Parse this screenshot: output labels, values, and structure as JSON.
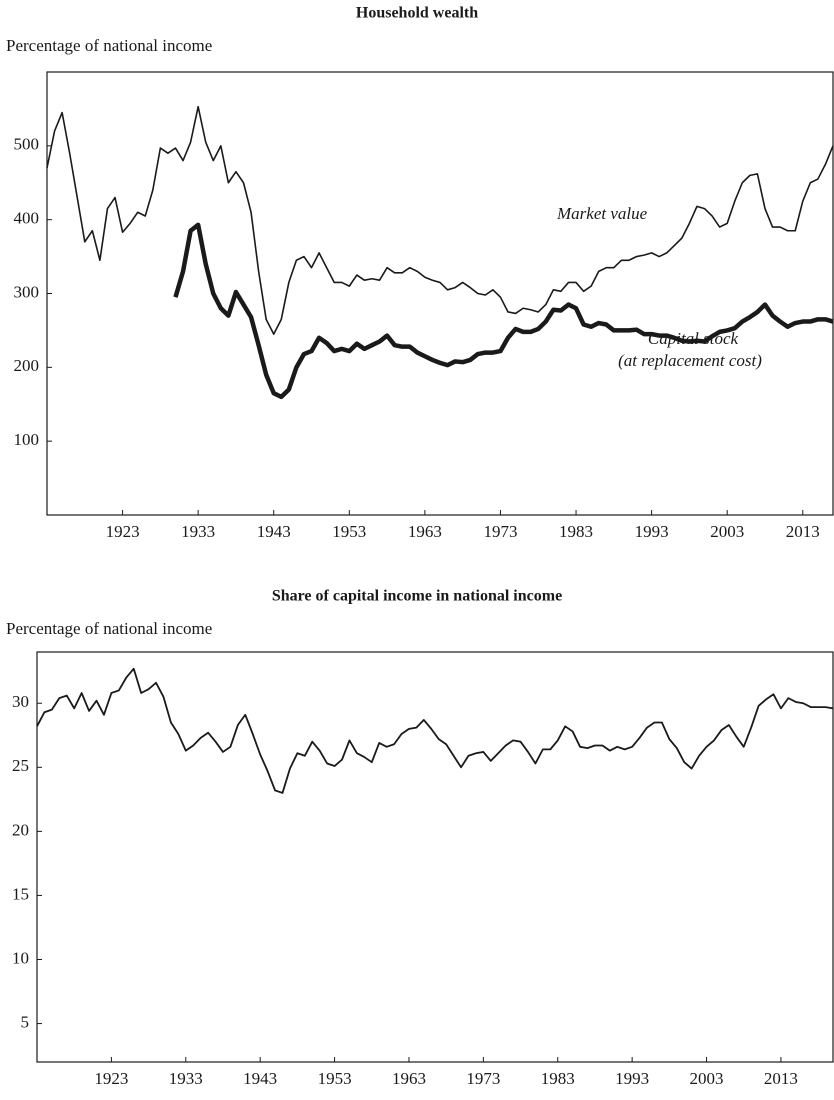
{
  "chart_data": [
    {
      "type": "line",
      "title": "Household wealth",
      "y_label": "Percentage of national income",
      "x": [
        1913,
        1914,
        1915,
        1916,
        1917,
        1918,
        1919,
        1920,
        1921,
        1922,
        1923,
        1924,
        1925,
        1926,
        1927,
        1928,
        1929,
        1930,
        1931,
        1932,
        1933,
        1934,
        1935,
        1936,
        1937,
        1938,
        1939,
        1940,
        1941,
        1942,
        1943,
        1944,
        1945,
        1946,
        1947,
        1948,
        1949,
        1950,
        1951,
        1952,
        1953,
        1954,
        1955,
        1956,
        1957,
        1958,
        1959,
        1960,
        1961,
        1962,
        1963,
        1964,
        1965,
        1966,
        1967,
        1968,
        1969,
        1970,
        1971,
        1972,
        1973,
        1974,
        1975,
        1976,
        1977,
        1978,
        1979,
        1980,
        1981,
        1982,
        1983,
        1984,
        1985,
        1986,
        1987,
        1988,
        1989,
        1990,
        1991,
        1992,
        1993,
        1994,
        1995,
        1996,
        1997,
        1998,
        1999,
        2000,
        2001,
        2002,
        2003,
        2004,
        2005,
        2006,
        2007,
        2008,
        2009,
        2010,
        2011,
        2012,
        2013,
        2014,
        2015,
        2016,
        2017
      ],
      "series": [
        {
          "name": "Market value",
          "color": "#1a1a1a",
          "line_width": 1.6,
          "values": [
            470,
            520,
            545,
            490,
            430,
            370,
            385,
            345,
            415,
            430,
            383,
            395,
            410,
            405,
            440,
            497,
            490,
            497,
            480,
            505,
            553,
            505,
            480,
            500,
            450,
            465,
            450,
            410,
            330,
            265,
            245,
            265,
            315,
            345,
            350,
            335,
            355,
            335,
            315,
            315,
            310,
            325,
            318,
            320,
            318,
            335,
            328,
            328,
            335,
            330,
            322,
            318,
            315,
            305,
            308,
            315,
            308,
            300,
            298,
            305,
            295,
            275,
            273,
            280,
            278,
            275,
            285,
            305,
            303,
            315,
            315,
            303,
            310,
            330,
            335,
            335,
            345,
            345,
            350,
            352,
            355,
            350,
            355,
            365,
            375,
            395,
            418,
            415,
            405,
            390,
            395,
            425,
            450,
            460,
            462,
            415,
            390,
            390,
            385,
            385,
            425,
            450,
            455,
            475,
            500
          ]
        },
        {
          "name": "Capital stock (at replacement cost)",
          "color": "#1a1a1a",
          "line_width": 4.5,
          "values": [
            null,
            null,
            null,
            null,
            null,
            null,
            null,
            null,
            null,
            null,
            null,
            null,
            null,
            null,
            null,
            null,
            null,
            295,
            330,
            385,
            393,
            340,
            300,
            280,
            270,
            302,
            285,
            268,
            230,
            190,
            165,
            160,
            170,
            200,
            218,
            222,
            240,
            233,
            222,
            225,
            222,
            232,
            225,
            230,
            235,
            243,
            230,
            228,
            228,
            220,
            215,
            210,
            206,
            203,
            208,
            207,
            210,
            218,
            220,
            220,
            222,
            240,
            252,
            248,
            248,
            252,
            262,
            278,
            277,
            285,
            280,
            258,
            255,
            260,
            258,
            250,
            250,
            250,
            251,
            245,
            245,
            243,
            243,
            240,
            236,
            235,
            236,
            235,
            242,
            248,
            250,
            253,
            262,
            268,
            275,
            285,
            270,
            262,
            255,
            260,
            262,
            262,
            265,
            265,
            262
          ]
        }
      ],
      "annotations": [
        "Market value",
        "Capital stock",
        "(at replacement cost)"
      ],
      "xlim": [
        1913,
        2017
      ],
      "ylim": [
        0,
        600
      ],
      "xticks": [
        1923,
        1933,
        1943,
        1953,
        1963,
        1973,
        1983,
        1993,
        2003,
        2013
      ],
      "yticks": [
        100,
        200,
        300,
        400,
        500
      ]
    },
    {
      "type": "line",
      "title": "Share of capital income in national income",
      "y_label": "Percentage of national income",
      "x": [
        1913,
        1914,
        1915,
        1916,
        1917,
        1918,
        1919,
        1920,
        1921,
        1922,
        1923,
        1924,
        1925,
        1926,
        1927,
        1928,
        1929,
        1930,
        1931,
        1932,
        1933,
        1934,
        1935,
        1936,
        1937,
        1938,
        1939,
        1940,
        1941,
        1942,
        1943,
        1944,
        1945,
        1946,
        1947,
        1948,
        1949,
        1950,
        1951,
        1952,
        1953,
        1954,
        1955,
        1956,
        1957,
        1958,
        1959,
        1960,
        1961,
        1962,
        1963,
        1964,
        1965,
        1966,
        1967,
        1968,
        1969,
        1970,
        1971,
        1972,
        1973,
        1974,
        1975,
        1976,
        1977,
        1978,
        1979,
        1980,
        1981,
        1982,
        1983,
        1984,
        1985,
        1986,
        1987,
        1988,
        1989,
        1990,
        1991,
        1992,
        1993,
        1994,
        1995,
        1996,
        1997,
        1998,
        1999,
        2000,
        2001,
        2002,
        2003,
        2004,
        2005,
        2006,
        2007,
        2008,
        2009,
        2010,
        2011,
        2012,
        2013,
        2014,
        2015,
        2016,
        2017,
        2018,
        2019,
        2020
      ],
      "series": [
        {
          "name": "Share of capital income",
          "color": "#1a1a1a",
          "line_width": 1.8,
          "values": [
            28.2,
            29.3,
            29.5,
            30.4,
            30.6,
            29.6,
            30.8,
            29.4,
            30.2,
            29.1,
            30.8,
            31.0,
            32.0,
            32.7,
            30.8,
            31.1,
            31.6,
            30.5,
            28.5,
            27.6,
            26.3,
            26.7,
            27.3,
            27.7,
            27.0,
            26.2,
            26.6,
            28.3,
            29.1,
            27.6,
            26.0,
            24.7,
            23.2,
            23.0,
            24.9,
            26.1,
            25.9,
            27.0,
            26.3,
            25.3,
            25.1,
            25.6,
            27.1,
            26.1,
            25.8,
            25.4,
            26.9,
            26.6,
            26.8,
            27.6,
            28.0,
            28.1,
            28.7,
            28.0,
            27.2,
            26.8,
            25.9,
            25.0,
            25.9,
            26.1,
            26.2,
            25.5,
            26.1,
            26.7,
            27.1,
            27.0,
            26.2,
            25.3,
            26.4,
            26.4,
            27.1,
            28.2,
            27.8,
            26.6,
            26.5,
            26.7,
            26.7,
            26.3,
            26.6,
            26.4,
            26.6,
            27.3,
            28.1,
            28.5,
            28.5,
            27.2,
            26.5,
            25.4,
            24.9,
            25.9,
            26.6,
            27.1,
            27.9,
            28.3,
            27.4,
            26.6,
            28.1,
            29.8,
            30.3,
            30.7,
            29.6,
            30.4,
            30.1,
            30.0,
            29.7,
            29.7,
            29.7,
            29.6
          ]
        }
      ],
      "xlim": [
        1913,
        2020
      ],
      "ylim": [
        2,
        34
      ],
      "xticks": [
        1923,
        1933,
        1943,
        1953,
        1963,
        1973,
        1983,
        1993,
        2003,
        2013
      ],
      "yticks": [
        5,
        10,
        15,
        20,
        25,
        30
      ]
    }
  ]
}
